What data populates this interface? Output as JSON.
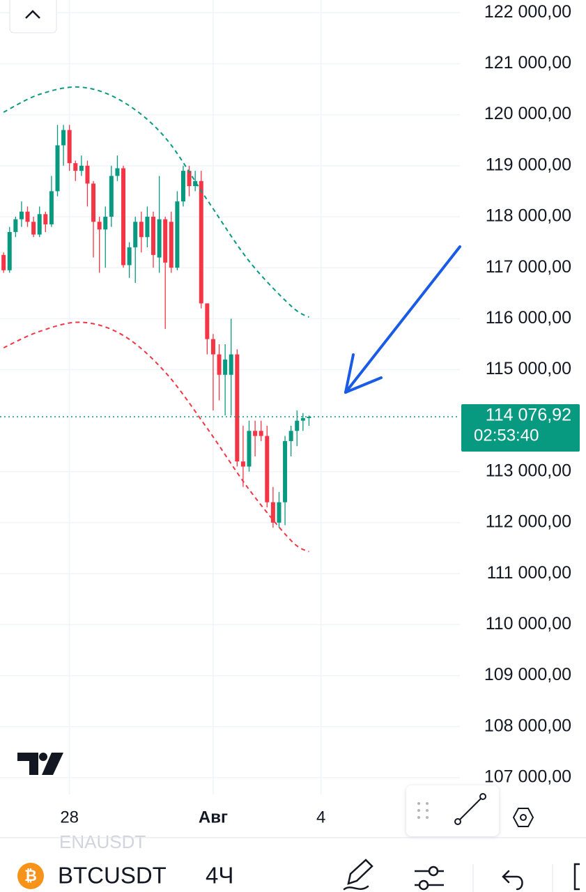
{
  "chart_data": {
    "type": "candlestick",
    "symbol": "BTCUSDT",
    "interval": "4Ч",
    "other_symbol": "ENAUSDT",
    "up_color": "#089981",
    "down_color": "#f23645",
    "open": [
      117250,
      116950,
      117700,
      117950,
      118100,
      117900,
      117650,
      118050,
      117850,
      118500,
      119400,
      119700,
      119050,
      118900,
      119000,
      118650,
      117900,
      117750,
      118000,
      118800,
      118950,
      117050,
      117400,
      117900,
      117600,
      118000,
      117200,
      117950,
      117900,
      117000,
      118300,
      118900,
      118600,
      118700,
      116300,
      115600,
      115300,
      114900,
      114900,
      115300,
      113200,
      113100,
      113800,
      113800,
      113700,
      112400,
      112000,
      112400,
      113600,
      113800,
      114000,
      114050
    ],
    "high": [
      117300,
      117800,
      118000,
      118300,
      118200,
      118000,
      118200,
      118100,
      118800,
      119800,
      119800,
      119800,
      119100,
      119200,
      119100,
      118700,
      118000,
      118200,
      119000,
      119200,
      119000,
      117500,
      118000,
      118100,
      118200,
      118100,
      118800,
      118000,
      118100,
      118500,
      119000,
      119000,
      118900,
      118900,
      116300,
      115700,
      115500,
      115500,
      116000,
      115400,
      113900,
      114000,
      114000,
      114000,
      113900,
      112700,
      112600,
      113700,
      113900,
      114200,
      114150,
      114100
    ],
    "low": [
      116900,
      116900,
      117600,
      117800,
      117800,
      117600,
      117600,
      117700,
      117800,
      118400,
      119000,
      118900,
      118700,
      118800,
      118200,
      117200,
      116900,
      117000,
      117800,
      118700,
      117000,
      116800,
      116700,
      117300,
      117400,
      117000,
      116900,
      115800,
      116900,
      116950,
      118200,
      118400,
      118500,
      116200,
      115300,
      114200,
      114400,
      114100,
      114100,
      113100,
      112700,
      113000,
      113300,
      113600,
      112300,
      111900,
      111900,
      111950,
      113300,
      113500,
      113800,
      113900
    ],
    "close": [
      116950,
      117700,
      117950,
      118100,
      117900,
      117650,
      118050,
      117850,
      118500,
      119400,
      119700,
      119050,
      118900,
      119000,
      118650,
      117900,
      117750,
      118000,
      118800,
      118950,
      117050,
      117400,
      117900,
      117600,
      118000,
      117250,
      117950,
      117100,
      117000,
      118300,
      118900,
      118600,
      118700,
      116300,
      115600,
      115300,
      114900,
      115200,
      115300,
      113200,
      113100,
      113800,
      113700,
      113700,
      112400,
      112000,
      112400,
      113600,
      113800,
      114000,
      114050,
      114076.92
    ],
    "bands": [
      {
        "color": "#089981",
        "x": [
          0,
          6,
          13,
          20,
          27,
          34,
          41,
          48,
          51
        ],
        "values": [
          120050,
          120400,
          120540,
          120250,
          119550,
          118330,
          117130,
          116250,
          116030
        ]
      },
      {
        "color": "#f23645",
        "x": [
          0,
          6,
          13,
          20,
          27,
          34,
          41,
          48,
          51
        ],
        "values": [
          115430,
          115750,
          115930,
          115670,
          114950,
          113850,
          112650,
          111650,
          111430
        ]
      }
    ],
    "last_price": {
      "value": 114076.92,
      "label": "114 076,92"
    },
    "countdown": "02:53:40",
    "ylim": [
      106670,
      122250
    ],
    "yticks": [
      {
        "value": 122000,
        "label": "122 000,00"
      },
      {
        "value": 121000,
        "label": "121 000,00"
      },
      {
        "value": 120000,
        "label": "120 000,00"
      },
      {
        "value": 119000,
        "label": "119 000,00"
      },
      {
        "value": 118000,
        "label": "118 000,00"
      },
      {
        "value": 117000,
        "label": "117 000,00"
      },
      {
        "value": 116000,
        "label": "116 000,00"
      },
      {
        "value": 115000,
        "label": "115 000,00"
      },
      {
        "value": 113000,
        "label": "113 000,00"
      },
      {
        "value": 112000,
        "label": "112 000,00"
      },
      {
        "value": 111000,
        "label": "111 000,00"
      },
      {
        "value": 110000,
        "label": "110 000,00"
      },
      {
        "value": 109000,
        "label": "109 000,00"
      },
      {
        "value": 108000,
        "label": "108 000,00"
      },
      {
        "value": 107000,
        "label": "107 000,00"
      }
    ],
    "xlim": [
      -0.6,
      76.2
    ],
    "xticks": [
      {
        "value": 11,
        "label": "28"
      },
      {
        "value": 35,
        "label": "Авг"
      },
      {
        "value": 53,
        "label": "4"
      }
    ],
    "grid": true
  }
}
